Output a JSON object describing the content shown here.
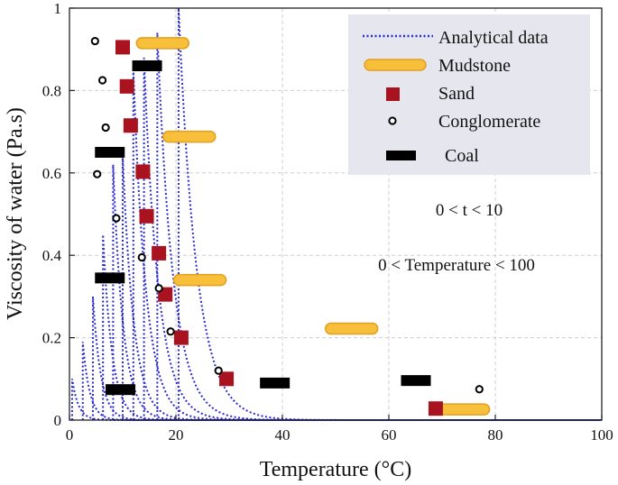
{
  "chart_data": {
    "type": "scatter",
    "xlabel": "Temperature (°C)",
    "ylabel": "Viscosity of water (Pa.s)",
    "xlim": [
      0,
      100
    ],
    "ylim": [
      0,
      1
    ],
    "xticks": [
      "0",
      "20",
      "40",
      "60",
      "80",
      "100"
    ],
    "yticks": [
      "0",
      "0.2",
      "0.4",
      "0.6",
      "0.8",
      "1"
    ],
    "xtick_values": [
      0,
      20,
      40,
      60,
      80,
      100
    ],
    "ytick_values": [
      0,
      0.2,
      0.4,
      0.6,
      0.8,
      1
    ],
    "grid": true,
    "legend_position": "top-right",
    "annotations": [
      "0 < t < 10",
      "0 < Temperature < 100"
    ],
    "colors": {
      "analytical": "#2a2ad0",
      "mudstone_fill": "#f7bf3a",
      "mudstone_edge": "#e3a020",
      "sand": "#a8131f",
      "conglomerate": "#000000",
      "coal": "#000000",
      "legend_bg": "#e6e7ee"
    },
    "legend": [
      {
        "key": "analytical",
        "label": "Analytical data"
      },
      {
        "key": "mudstone",
        "label": "Mudstone"
      },
      {
        "key": "sand",
        "label": "Sand"
      },
      {
        "key": "conglomerate",
        "label": "Conglomerate"
      },
      {
        "key": "coal",
        "label": "Coal"
      }
    ],
    "analytical_curves": {
      "t_values": [
        1,
        2,
        3,
        4,
        5,
        6,
        7,
        8,
        9,
        10
      ],
      "peak_temperature": [
        0.5,
        2.5,
        4.4,
        6.3,
        8.2,
        10.0,
        12.0,
        14.0,
        16.5,
        20.5
      ],
      "peak_value": [
        0.1,
        0.19,
        0.3,
        0.45,
        0.62,
        0.64,
        0.85,
        0.88,
        0.94,
        1.0
      ],
      "decay_width": [
        1.2,
        1.3,
        1.5,
        1.7,
        1.9,
        2.1,
        2.4,
        2.7,
        3.0,
        3.4
      ]
    },
    "series": [
      {
        "name": "Mudstone",
        "points": [
          [
            17.5,
            0.915
          ],
          [
            22.5,
            0.688
          ],
          [
            24.5,
            0.34
          ],
          [
            53,
            0.222
          ],
          [
            74,
            0.026
          ]
        ]
      },
      {
        "name": "Sand",
        "points": [
          [
            10,
            0.905
          ],
          [
            10.8,
            0.81
          ],
          [
            11.5,
            0.715
          ],
          [
            13.8,
            0.603
          ],
          [
            14.5,
            0.495
          ],
          [
            16.8,
            0.405
          ],
          [
            18,
            0.305
          ],
          [
            21,
            0.2
          ],
          [
            29.5,
            0.1
          ],
          [
            68.8,
            0.028
          ]
        ]
      },
      {
        "name": "Conglomerate",
        "points": [
          [
            4.8,
            0.92
          ],
          [
            6.2,
            0.825
          ],
          [
            6.8,
            0.71
          ],
          [
            5.2,
            0.597
          ],
          [
            8.8,
            0.49
          ],
          [
            13.6,
            0.395
          ],
          [
            16.8,
            0.32
          ],
          [
            19,
            0.215
          ],
          [
            28,
            0.12
          ],
          [
            77,
            0.075
          ]
        ]
      },
      {
        "name": "Coal",
        "points": [
          [
            9.5,
            0.074
          ],
          [
            7.5,
            0.65
          ],
          [
            7.5,
            0.345
          ],
          [
            14.5,
            0.86
          ],
          [
            38.5,
            0.09
          ],
          [
            65,
            0.096
          ]
        ]
      }
    ]
  }
}
